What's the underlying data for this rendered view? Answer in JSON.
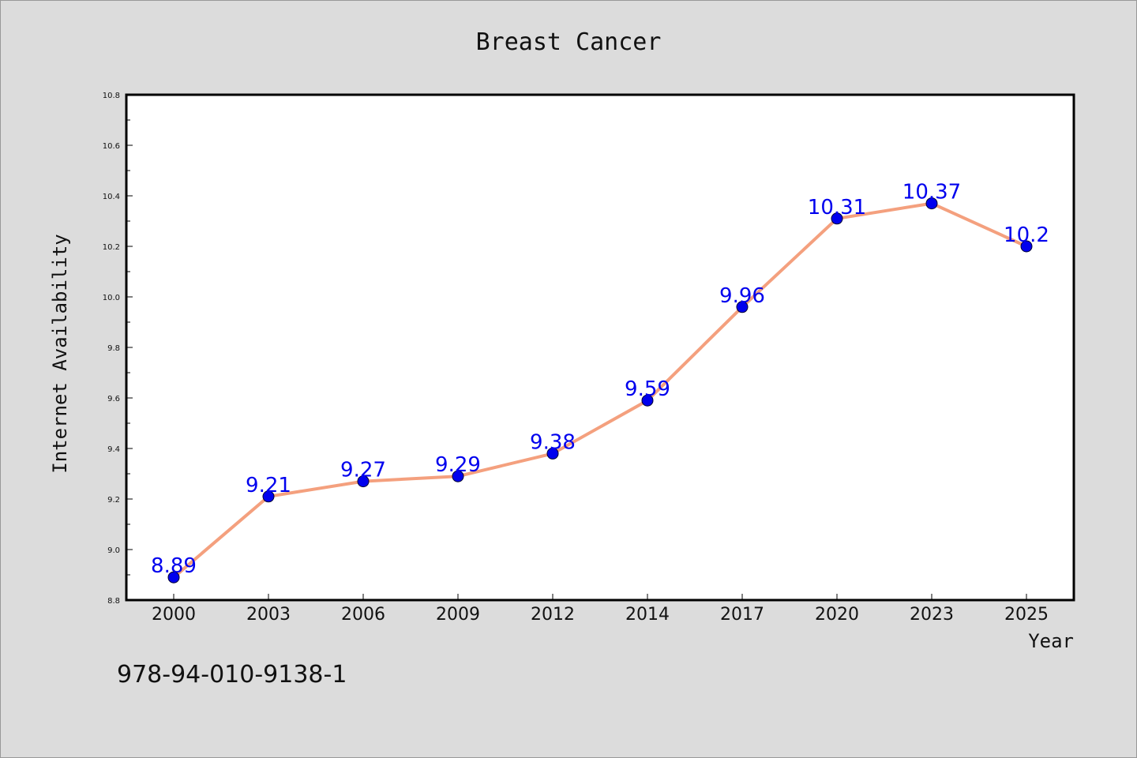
{
  "colors": {
    "background": "#dcdcdc",
    "plot_background": "#ffffff",
    "line": "#f4a07e",
    "marker": "#0000ee",
    "data_label": "#0000ee",
    "axis": "#000000"
  },
  "footnote": "978-94-010-9138-1",
  "chart_data": {
    "type": "line",
    "title": "Breast Cancer",
    "xlabel": "Year",
    "ylabel": "Internet Availability",
    "categories": [
      "2000",
      "2003",
      "2006",
      "2009",
      "2012",
      "2014",
      "2017",
      "2020",
      "2023",
      "2025"
    ],
    "series": [
      {
        "values": [
          8.89,
          9.21,
          9.27,
          9.29,
          9.38,
          9.59,
          9.96,
          10.31,
          10.37,
          10.2
        ],
        "data_labels": [
          "8.89",
          "9.21",
          "9.27",
          "9.29",
          "9.38",
          "9.59",
          "9.96",
          "10.31",
          "10.37",
          "10.2"
        ]
      }
    ],
    "ylim": [
      8.8,
      10.8
    ],
    "yticks": [
      8.8,
      9.0,
      9.2,
      9.4,
      9.6,
      9.8,
      10.0,
      10.2,
      10.4,
      10.6,
      10.8
    ],
    "ytick_labels": [
      "8.8",
      "9.0",
      "9.2",
      "9.4",
      "9.6",
      "9.8",
      "10.0",
      "10.2",
      "10.4",
      "10.6",
      "10.8"
    ],
    "grid": false,
    "legend": "none"
  }
}
